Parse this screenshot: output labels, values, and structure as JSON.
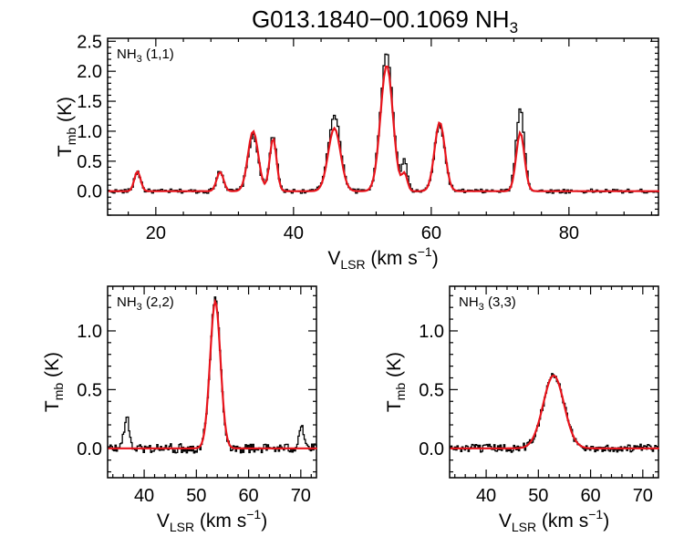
{
  "title": {
    "main": "G013.1840−00.1069 NH",
    "sub": "3"
  },
  "colors": {
    "observed": "#000000",
    "model": "#e8141c"
  },
  "chart_data": [
    {
      "type": "line",
      "panel_label": {
        "main": "NH",
        "sub": "3",
        "rest": " (1,1)"
      },
      "xlabel": {
        "main": "V",
        "sub": "LSR",
        "rest": " (km s",
        "sup": "−1",
        "end": ")"
      },
      "ylabel": {
        "main": "T",
        "sub": "mb",
        "rest": " (K)"
      },
      "xlim": [
        13,
        93
      ],
      "ylim": [
        -0.4,
        2.55
      ],
      "xticks": [
        20,
        40,
        60,
        80
      ],
      "xtick_labels": [
        "20",
        "40",
        "60",
        "80"
      ],
      "yticks": [
        0.0,
        0.5,
        1.0,
        1.5,
        2.0,
        2.5
      ],
      "ytick_labels": [
        "0.0",
        "0.5",
        "1.0",
        "1.5",
        "2.0",
        "2.5"
      ],
      "baseline": 0.0,
      "series": [
        {
          "role": "observed",
          "style": "histogram",
          "noise": 0.035
        },
        {
          "role": "model",
          "style": "line"
        }
      ],
      "components": [
        {
          "center": 17.2,
          "amplitude": 0.33,
          "width": 0.45,
          "observed_amplitude": 0.33
        },
        {
          "center": 29.2,
          "amplitude": 0.32,
          "width": 0.5,
          "observed_amplitude": 0.35
        },
        {
          "center": 34.0,
          "amplitude": 1.0,
          "width": 0.75,
          "observed_amplitude": 0.92
        },
        {
          "center": 36.9,
          "amplitude": 0.88,
          "width": 0.5,
          "observed_amplitude": 0.93
        },
        {
          "center": 45.8,
          "amplitude": 1.05,
          "width": 0.9,
          "observed_amplitude": 1.25
        },
        {
          "center": 53.4,
          "amplitude": 2.1,
          "width": 0.9,
          "observed_amplitude": 2.3
        },
        {
          "center": 56.0,
          "amplitude": 0.28,
          "width": 0.4,
          "observed_amplitude": 0.5
        },
        {
          "center": 61.1,
          "amplitude": 1.15,
          "width": 0.75,
          "observed_amplitude": 1.1
        },
        {
          "center": 72.8,
          "amplitude": 0.98,
          "width": 0.6,
          "observed_amplitude": 1.37
        }
      ]
    },
    {
      "type": "line",
      "panel_label": {
        "main": "NH",
        "sub": "3",
        "rest": " (2,2)"
      },
      "xlabel": {
        "main": "V",
        "sub": "LSR",
        "rest": " (km s",
        "sup": "−1",
        "end": ")"
      },
      "ylabel": {
        "main": "T",
        "sub": "mb",
        "rest": " (K)"
      },
      "xlim": [
        33,
        73
      ],
      "ylim": [
        -0.25,
        1.38
      ],
      "xticks": [
        40,
        50,
        60,
        70
      ],
      "xtick_labels": [
        "40",
        "50",
        "60",
        "70"
      ],
      "yticks": [
        0.0,
        0.5,
        1.0
      ],
      "ytick_labels": [
        "0.0",
        "0.5",
        "1.0"
      ],
      "baseline": 0.0,
      "series": [
        {
          "role": "observed",
          "style": "histogram",
          "noise": 0.04
        },
        {
          "role": "model",
          "style": "line"
        }
      ],
      "components": [
        {
          "center": 53.5,
          "amplitude": 1.25,
          "width": 1.0,
          "observed_amplitude": 1.27
        },
        {
          "center": 36.5,
          "amplitude": 0.0,
          "width": 0.5,
          "observed_amplitude": 0.26
        },
        {
          "center": 70.0,
          "amplitude": 0.0,
          "width": 0.5,
          "observed_amplitude": 0.2
        }
      ]
    },
    {
      "type": "line",
      "panel_label": {
        "main": "NH",
        "sub": "3",
        "rest": " (3,3)"
      },
      "xlabel": {
        "main": "V",
        "sub": "LSR",
        "rest": " (km s",
        "sup": "−1",
        "end": ")"
      },
      "ylabel": {
        "main": "T",
        "sub": "mb",
        "rest": " (K)"
      },
      "xlim": [
        33,
        73
      ],
      "ylim": [
        -0.25,
        1.38
      ],
      "xticks": [
        40,
        50,
        60,
        70
      ],
      "xtick_labels": [
        "40",
        "50",
        "60",
        "70"
      ],
      "yticks": [
        0.0,
        0.5,
        1.0
      ],
      "ytick_labels": [
        "0.0",
        "0.5",
        "1.0"
      ],
      "baseline": 0.0,
      "series": [
        {
          "role": "observed",
          "style": "histogram",
          "noise": 0.035
        },
        {
          "role": "model",
          "style": "line"
        }
      ],
      "components": [
        {
          "center": 52.8,
          "amplitude": 0.62,
          "width": 2.0,
          "observed_amplitude": 0.62
        }
      ]
    }
  ]
}
